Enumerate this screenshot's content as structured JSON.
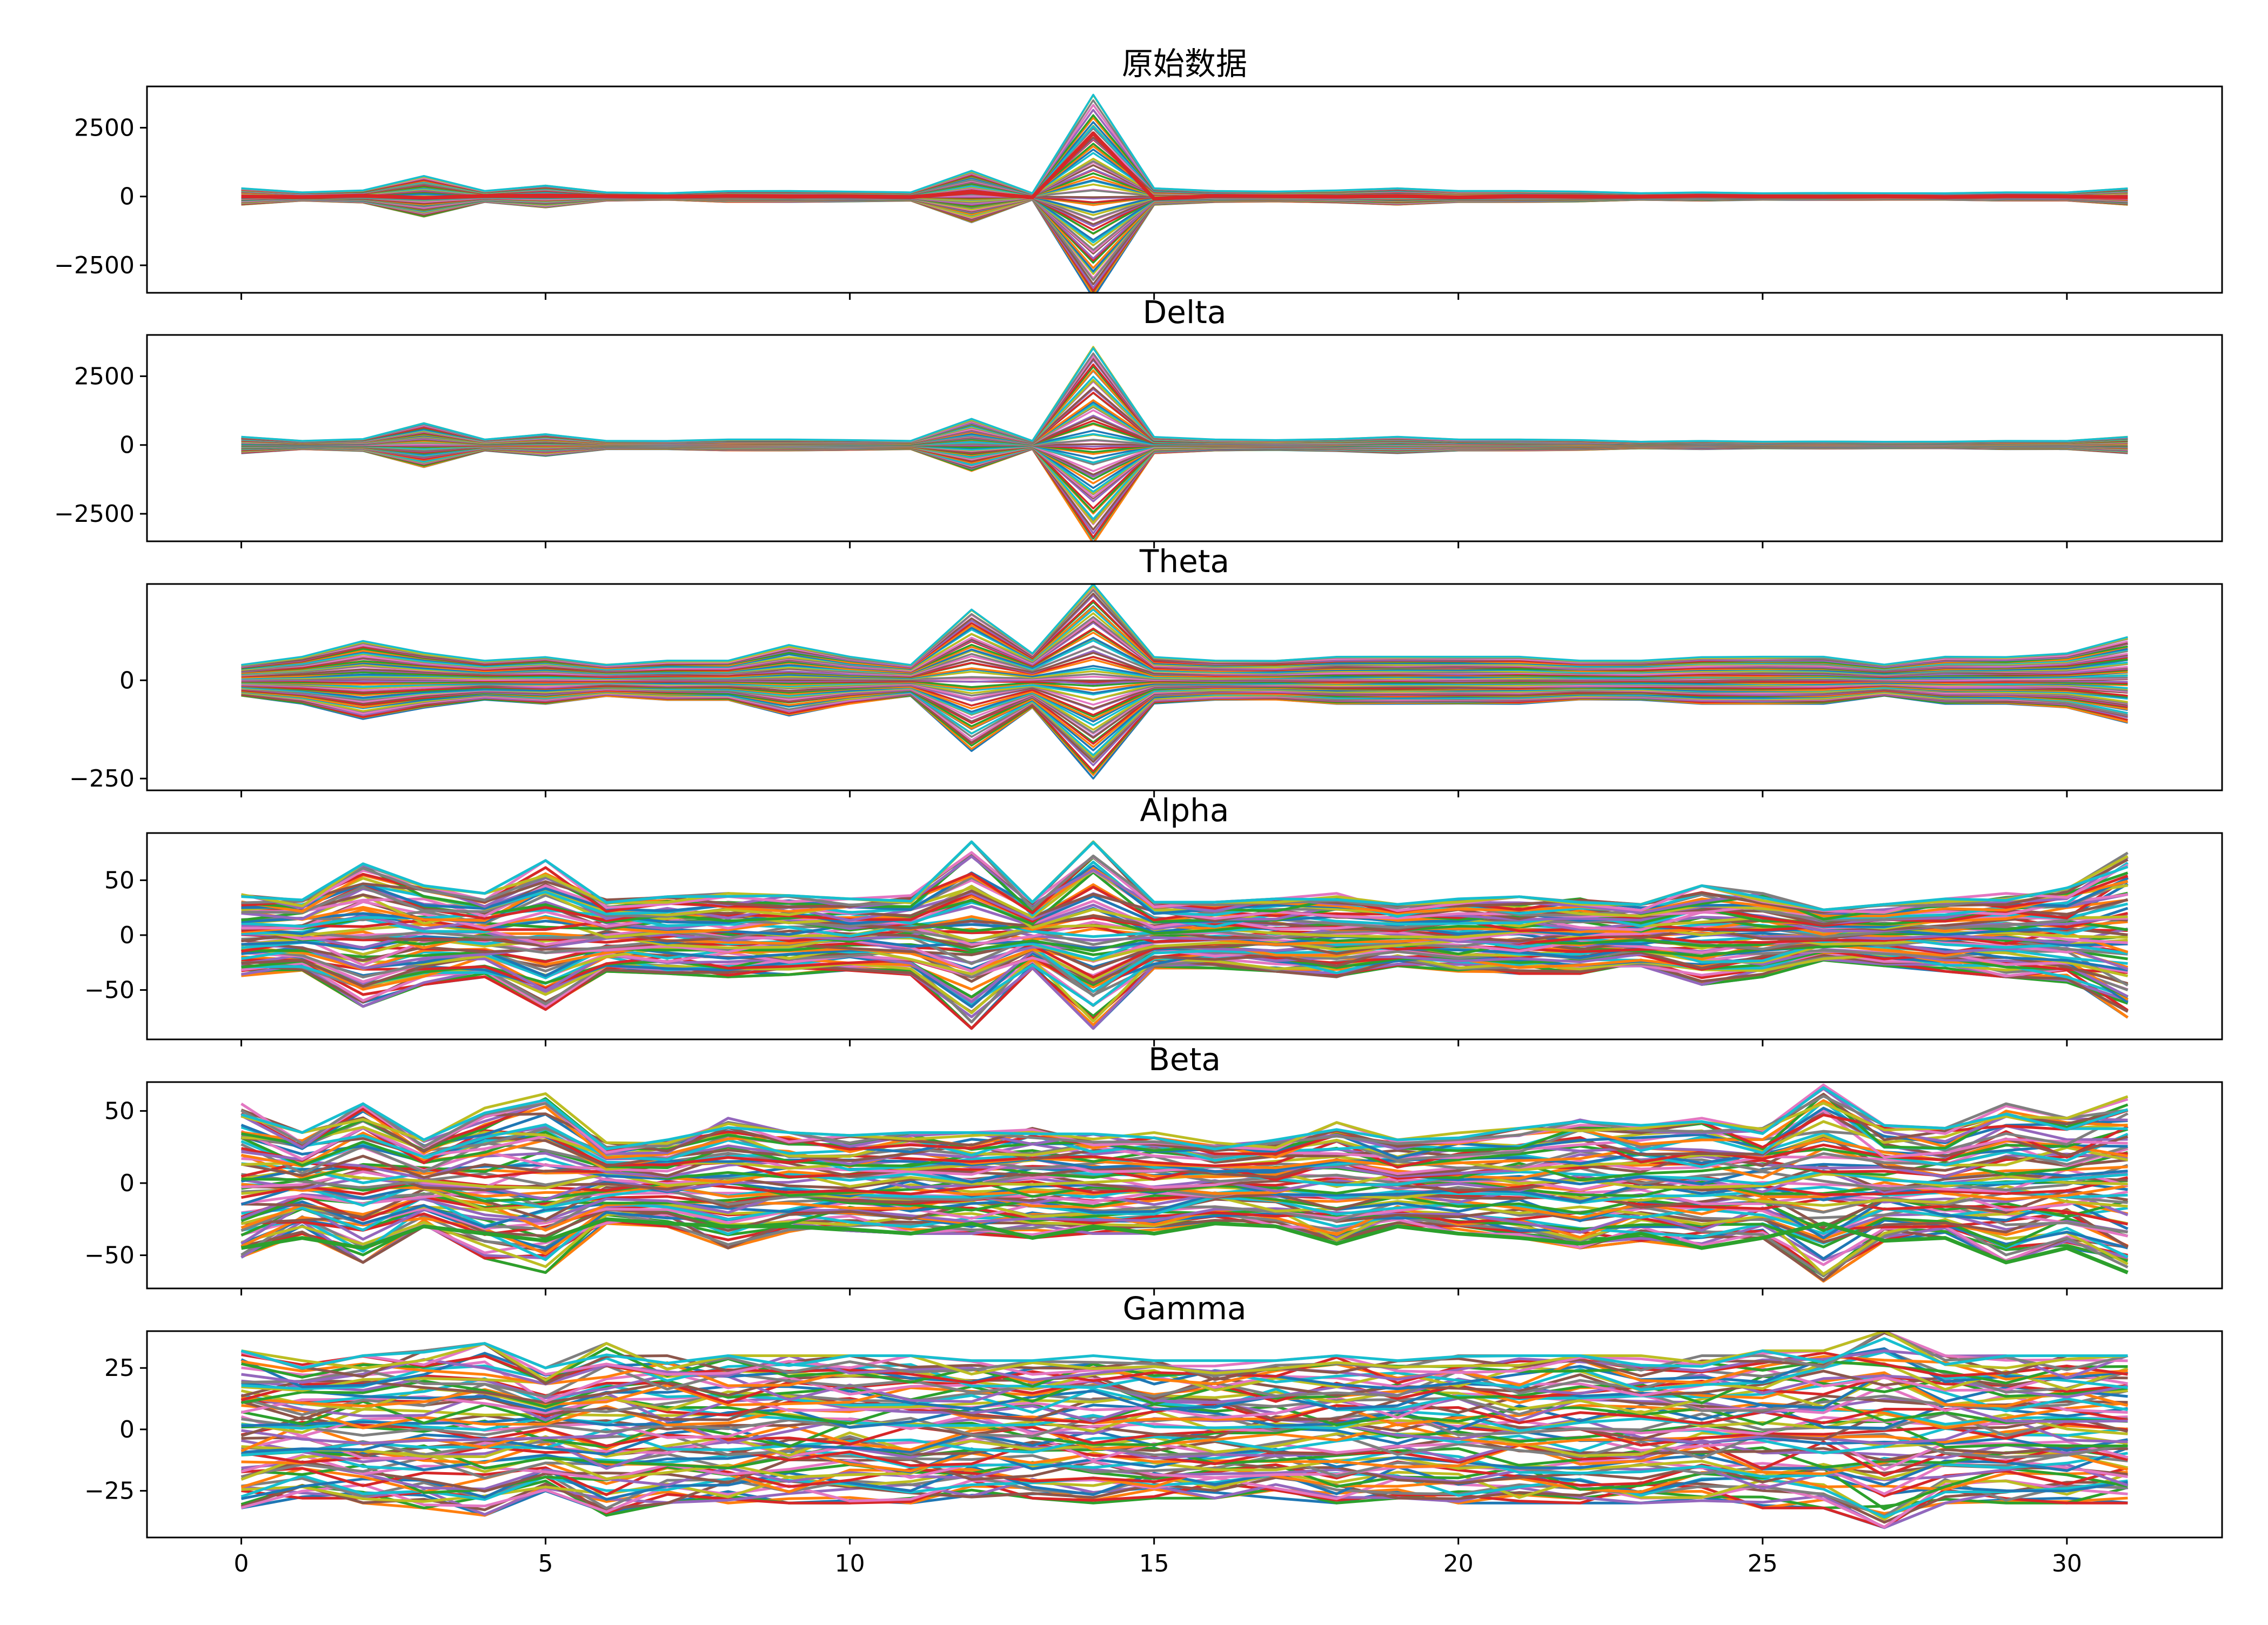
{
  "chart_data": [
    {
      "type": "line",
      "title": "原始数据",
      "xlabel": "",
      "ylabel": "",
      "x": [
        0,
        1,
        2,
        3,
        4,
        5,
        6,
        7,
        8,
        9,
        10,
        11,
        12,
        13,
        14,
        15,
        16,
        17,
        18,
        19,
        20,
        21,
        22,
        23,
        24,
        25,
        26,
        27,
        28,
        29,
        30,
        31
      ],
      "xlim": [
        -1.55,
        32.55
      ],
      "ylim": [
        -3500,
        4000
      ],
      "yticks": [
        -2500,
        0,
        2500
      ],
      "ytick_labels": [
        "−2500",
        "0",
        "2500"
      ],
      "show_xtick_labels": false,
      "grid": false,
      "legend": "none",
      "envelope": [
        300,
        150,
        220,
        750,
        200,
        400,
        150,
        120,
        200,
        200,
        180,
        150,
        950,
        120,
        3700,
        300,
        200,
        180,
        220,
        300,
        200,
        200,
        180,
        120,
        150,
        120,
        130,
        120,
        120,
        150,
        150,
        300
      ],
      "highlight": {
        "color": "#d62728",
        "values": [
          0,
          -20,
          30,
          -50,
          20,
          40,
          10,
          -10,
          20,
          0,
          10,
          -20,
          150,
          -30,
          2300,
          -80,
          20,
          10,
          -10,
          20,
          -30,
          10,
          0,
          -10,
          20,
          0,
          -10,
          10,
          -20,
          10,
          0,
          -30
        ]
      }
    },
    {
      "type": "line",
      "title": "Delta",
      "xlabel": "",
      "ylabel": "",
      "x": [
        0,
        1,
        2,
        3,
        4,
        5,
        6,
        7,
        8,
        9,
        10,
        11,
        12,
        13,
        14,
        15,
        16,
        17,
        18,
        19,
        20,
        21,
        22,
        23,
        24,
        25,
        26,
        27,
        28,
        29,
        30,
        31
      ],
      "xlim": [
        -1.55,
        32.55
      ],
      "ylim": [
        -3500,
        4000
      ],
      "yticks": [
        -2500,
        0,
        2500
      ],
      "ytick_labels": [
        "−2500",
        "0",
        "2500"
      ],
      "show_xtick_labels": false,
      "grid": false,
      "legend": "none",
      "envelope": [
        300,
        150,
        220,
        800,
        200,
        400,
        150,
        150,
        200,
        200,
        180,
        150,
        950,
        150,
        3600,
        300,
        200,
        180,
        220,
        300,
        200,
        200,
        180,
        120,
        150,
        120,
        130,
        120,
        120,
        150,
        150,
        300
      ]
    },
    {
      "type": "line",
      "title": "Theta",
      "xlabel": "",
      "ylabel": "",
      "x": [
        0,
        1,
        2,
        3,
        4,
        5,
        6,
        7,
        8,
        9,
        10,
        11,
        12,
        13,
        14,
        15,
        16,
        17,
        18,
        19,
        20,
        21,
        22,
        23,
        24,
        25,
        26,
        27,
        28,
        29,
        30,
        31
      ],
      "xlim": [
        -1.55,
        32.55
      ],
      "ylim": [
        -280,
        245
      ],
      "yticks": [
        -250,
        0
      ],
      "ytick_labels": [
        "−250",
        "0"
      ],
      "show_xtick_labels": false,
      "grid": false,
      "legend": "none",
      "envelope": [
        40,
        60,
        100,
        70,
        50,
        60,
        40,
        50,
        50,
        90,
        60,
        40,
        180,
        70,
        250,
        60,
        50,
        50,
        60,
        60,
        60,
        60,
        50,
        50,
        60,
        60,
        60,
        40,
        60,
        60,
        70,
        110
      ]
    },
    {
      "type": "line",
      "title": "Alpha",
      "xlabel": "",
      "ylabel": "",
      "x": [
        0,
        1,
        2,
        3,
        4,
        5,
        6,
        7,
        8,
        9,
        10,
        11,
        12,
        13,
        14,
        15,
        16,
        17,
        18,
        19,
        20,
        21,
        22,
        23,
        24,
        25,
        26,
        27,
        28,
        29,
        30,
        31
      ],
      "xlim": [
        -1.55,
        32.55
      ],
      "ylim": [
        -95,
        93
      ],
      "yticks": [
        -50,
        0,
        50
      ],
      "ytick_labels": [
        "−50",
        "0",
        "50"
      ],
      "show_xtick_labels": false,
      "grid": false,
      "legend": "none",
      "envelope": [
        37,
        32,
        65,
        45,
        38,
        68,
        33,
        35,
        38,
        36,
        33,
        36,
        85,
        30,
        85,
        30,
        30,
        33,
        38,
        28,
        33,
        35,
        35,
        28,
        45,
        38,
        23,
        28,
        33,
        38,
        43,
        75
      ]
    },
    {
      "type": "line",
      "title": "Beta",
      "xlabel": "",
      "ylabel": "",
      "x": [
        0,
        1,
        2,
        3,
        4,
        5,
        6,
        7,
        8,
        9,
        10,
        11,
        12,
        13,
        14,
        15,
        16,
        17,
        18,
        19,
        20,
        21,
        22,
        23,
        24,
        25,
        26,
        27,
        28,
        29,
        30,
        31
      ],
      "xlim": [
        -1.55,
        32.55
      ],
      "ylim": [
        -73,
        70
      ],
      "yticks": [
        -50,
        0,
        50
      ],
      "ytick_labels": [
        "−50",
        "0",
        "50"
      ],
      "show_xtick_labels": false,
      "grid": false,
      "legend": "none",
      "envelope": [
        55,
        35,
        55,
        30,
        52,
        62,
        28,
        30,
        45,
        35,
        33,
        35,
        35,
        38,
        35,
        35,
        28,
        30,
        42,
        30,
        35,
        38,
        45,
        40,
        45,
        38,
        68,
        40,
        38,
        55,
        45,
        60
      ],
      "highlight": {
        "color": "#2ca02c",
        "values": [
          -45,
          -38,
          -45,
          -30,
          -35,
          -40,
          -25,
          -28,
          -30,
          -30,
          -32,
          -35,
          -28,
          -38,
          -30,
          -35,
          -28,
          -30,
          -42,
          -30,
          -35,
          -38,
          -42,
          -35,
          -45,
          -38,
          -28,
          -40,
          -38,
          -55,
          -45,
          -62
        ]
      }
    },
    {
      "type": "line",
      "title": "Gamma",
      "xlabel": "",
      "ylabel": "",
      "x": [
        0,
        1,
        2,
        3,
        4,
        5,
        6,
        7,
        8,
        9,
        10,
        11,
        12,
        13,
        14,
        15,
        16,
        17,
        18,
        19,
        20,
        21,
        22,
        23,
        24,
        25,
        26,
        27,
        28,
        29,
        30,
        31
      ],
      "xlim": [
        -1.55,
        32.55
      ],
      "ylim": [
        -44,
        40
      ],
      "yticks": [
        -25,
        0,
        25
      ],
      "ytick_labels": [
        "−25",
        "0",
        "25"
      ],
      "xticks": [
        0,
        5,
        10,
        15,
        20,
        25,
        30
      ],
      "xtick_labels": [
        "0",
        "5",
        "10",
        "15",
        "20",
        "25",
        "30"
      ],
      "show_xtick_labels": true,
      "grid": false,
      "legend": "none",
      "envelope": [
        32,
        28,
        30,
        32,
        35,
        25,
        35,
        30,
        30,
        30,
        30,
        30,
        28,
        28,
        30,
        28,
        28,
        28,
        30,
        28,
        30,
        30,
        30,
        30,
        30,
        32,
        32,
        40,
        30,
        30,
        30,
        30
      ]
    }
  ],
  "series_colors": [
    "#1f77b4",
    "#ff7f0e",
    "#2ca02c",
    "#d62728",
    "#9467bd",
    "#8c564b",
    "#e377c2",
    "#7f7f7f",
    "#bcbd22",
    "#17becf"
  ]
}
